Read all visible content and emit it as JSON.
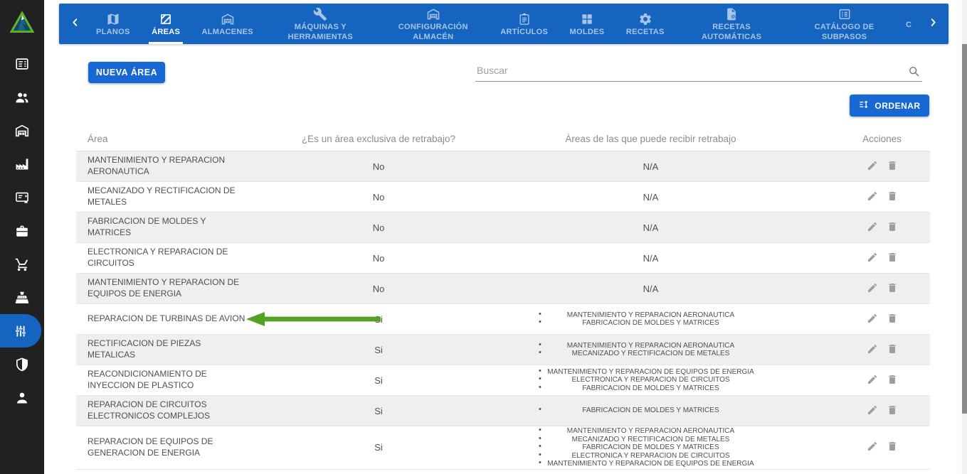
{
  "colors": {
    "nav_blue": "#1565c0",
    "button_blue": "#1868d3",
    "sidebar_bg": "#212121",
    "arrow_green": "#55a222",
    "row_alt": "#efefef"
  },
  "sidebar": {
    "logo_icon": "triangle-logo",
    "items": [
      {
        "id": "articles",
        "icon": "article-icon"
      },
      {
        "id": "users",
        "icon": "users-icon"
      },
      {
        "id": "warehouse",
        "icon": "warehouse-icon"
      },
      {
        "id": "production",
        "icon": "factory-icon"
      },
      {
        "id": "certificates",
        "icon": "certificate-icon"
      },
      {
        "id": "toolbox",
        "icon": "toolbox-icon"
      },
      {
        "id": "purchases",
        "icon": "cart-icon"
      },
      {
        "id": "sales",
        "icon": "register-icon"
      },
      {
        "id": "configuration",
        "icon": "tune-icon",
        "active": true
      },
      {
        "id": "security",
        "icon": "shield-icon"
      },
      {
        "id": "account",
        "icon": "person-icon"
      }
    ]
  },
  "nav": {
    "back_icon": "chevron-left-icon",
    "forward_icon": "chevron-right-icon",
    "tabs": [
      {
        "id": "planos",
        "label": "PLANOS",
        "icon": "map-icon"
      },
      {
        "id": "areas",
        "label": "ÁREAS",
        "icon": "texture-icon",
        "active": true
      },
      {
        "id": "almacenes",
        "label": "ALMACENES",
        "icon": "warehouse-icon"
      },
      {
        "id": "maquinas-herramientas",
        "label": "MÁQUINAS Y HERRAMIENTAS",
        "icon": "tools-icon"
      },
      {
        "id": "configuracion-almacen",
        "label": "CONFIGURACIÓN ALMACÉN",
        "icon": "warehouse-icon"
      },
      {
        "id": "articulos",
        "label": "ARTÍCULOS",
        "icon": "clipboard-icon"
      },
      {
        "id": "moldes",
        "label": "MOLDES",
        "icon": "grid-icon"
      },
      {
        "id": "recetas",
        "label": "RECETAS",
        "icon": "gears-icon"
      },
      {
        "id": "recetas-automaticas",
        "label": "RECETAS AUTOMÁTICAS",
        "icon": "file-gear-icon"
      },
      {
        "id": "catalogo-subpasos",
        "label": "CATÁLOGO DE SUBPASOS",
        "icon": "list-icon"
      },
      {
        "id": "overflow",
        "label": "C",
        "icon": null,
        "truncated": true
      }
    ]
  },
  "toolbar": {
    "new_area_label": "NUEVA ÁREA",
    "search_placeholder": "Buscar",
    "search_icon": "search-icon",
    "order_label": "ORDENAR",
    "order_icon": "sort-icon"
  },
  "table": {
    "headers": [
      "Área",
      "¿Es un área exclusiva de retrabajo?",
      "Áreas de las que puede recibir retrabajo",
      "Acciones"
    ],
    "na_label": "N/A",
    "action_icons": [
      "pencil-icon",
      "trash-icon"
    ],
    "rows": [
      {
        "area": "MANTENIMIENTO Y REPARACION AERONAUTICA",
        "exclusive": "No",
        "receives": []
      },
      {
        "area": "MECANIZADO Y RECTIFICACION DE METALES",
        "exclusive": "No",
        "receives": []
      },
      {
        "area": "FABRICACION DE MOLDES Y MATRICES",
        "exclusive": "No",
        "receives": []
      },
      {
        "area": "ELECTRONICA Y REPARACION DE CIRCUITOS",
        "exclusive": "No",
        "receives": []
      },
      {
        "area": "MANTENIMIENTO Y REPARACION DE EQUIPOS DE ENERGIA",
        "exclusive": "No",
        "receives": []
      },
      {
        "area": "REPARACION DE TURBINAS DE AVION",
        "exclusive": "Si",
        "arrow": true,
        "receives": [
          "MANTENIMIENTO Y REPARACION AERONAUTICA",
          "FABRICACION DE MOLDES Y MATRICES"
        ]
      },
      {
        "area": "RECTIFICACION DE PIEZAS METALICAS",
        "exclusive": "Si",
        "receives": [
          "MANTENIMIENTO Y REPARACION AERONAUTICA",
          "MECANIZADO Y RECTIFICACION DE METALES"
        ]
      },
      {
        "area": "REACONDICIONAMIENTO DE INYECCION DE PLASTICO",
        "exclusive": "Si",
        "receives": [
          "MANTENIMIENTO Y REPARACION DE EQUIPOS DE ENERGIA",
          "ELECTRONICA Y REPARACION DE CIRCUITOS",
          "FABRICACION DE MOLDES Y MATRICES"
        ]
      },
      {
        "area": "REPARACION DE CIRCUITOS ELECTRONICOS COMPLEJOS",
        "exclusive": "Si",
        "receives": [
          "FABRICACION DE MOLDES Y MATRICES"
        ]
      },
      {
        "area": "REPARACION DE EQUIPOS DE GENERACION DE ENERGIA",
        "exclusive": "Si",
        "receives": [
          "MANTENIMIENTO Y REPARACION AERONAUTICA",
          "MECANIZADO Y RECTIFICACION DE METALES",
          "FABRICACION DE MOLDES Y MATRICES",
          "ELECTRONICA Y REPARACION DE CIRCUITOS",
          "MANTENIMIENTO Y REPARACION DE EQUIPOS DE ENERGIA"
        ]
      }
    ]
  }
}
